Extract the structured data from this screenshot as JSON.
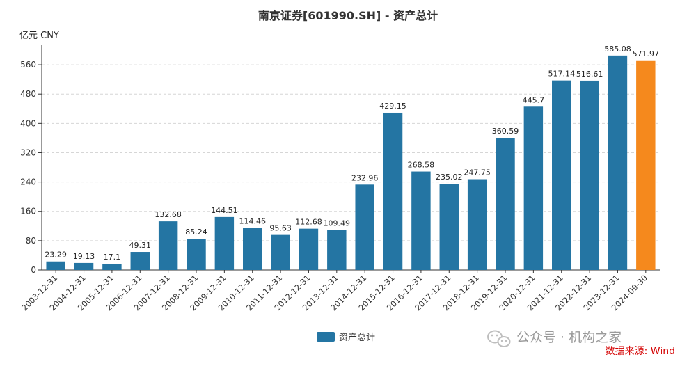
{
  "chart_data": {
    "type": "bar",
    "title": "南京证券[601990.SH] - 资产总计",
    "unit_label": "亿元  CNY",
    "xlabel": "",
    "ylabel": "亿元  CNY",
    "ylim": [
      0,
      600
    ],
    "yticks": [
      0,
      80,
      160,
      240,
      320,
      400,
      480,
      560
    ],
    "grid": true,
    "legend_position": "bottom-center",
    "categories": [
      "2003-12-31",
      "2004-12-31",
      "2005-12-31",
      "2006-12-31",
      "2007-12-31",
      "2008-12-31",
      "2009-12-31",
      "2010-12-31",
      "2011-12-31",
      "2012-12-31",
      "2013-12-31",
      "2014-12-31",
      "2015-12-31",
      "2016-12-31",
      "2017-12-31",
      "2018-12-31",
      "2019-12-31",
      "2020-12-31",
      "2021-12-31",
      "2022-12-31",
      "2023-12-31",
      "2024-09-30"
    ],
    "series": [
      {
        "name": "资产总计",
        "values": [
          23.29,
          19.13,
          17.1,
          49.31,
          132.68,
          85.24,
          144.51,
          114.46,
          95.63,
          112.68,
          109.49,
          232.96,
          429.15,
          268.58,
          235.02,
          247.75,
          360.59,
          445.7,
          517.14,
          516.61,
          585.08,
          571.97
        ],
        "labels": [
          "23.29",
          "19.13",
          "17.1",
          "49.31",
          "132.68",
          "85.24",
          "144.51",
          "114.46",
          "95.63",
          "112.68",
          "109.49",
          "232.96",
          "429.15",
          "268.58",
          "235.02",
          "247.75",
          "360.59",
          "445.7",
          "517.14",
          "516.61",
          "585.08",
          "571.97"
        ],
        "color": "#2475a3",
        "highlight_last_color": "#f5891d"
      }
    ]
  },
  "watermark": "公众号 · 机构之家",
  "source": "数据来源: Wind"
}
